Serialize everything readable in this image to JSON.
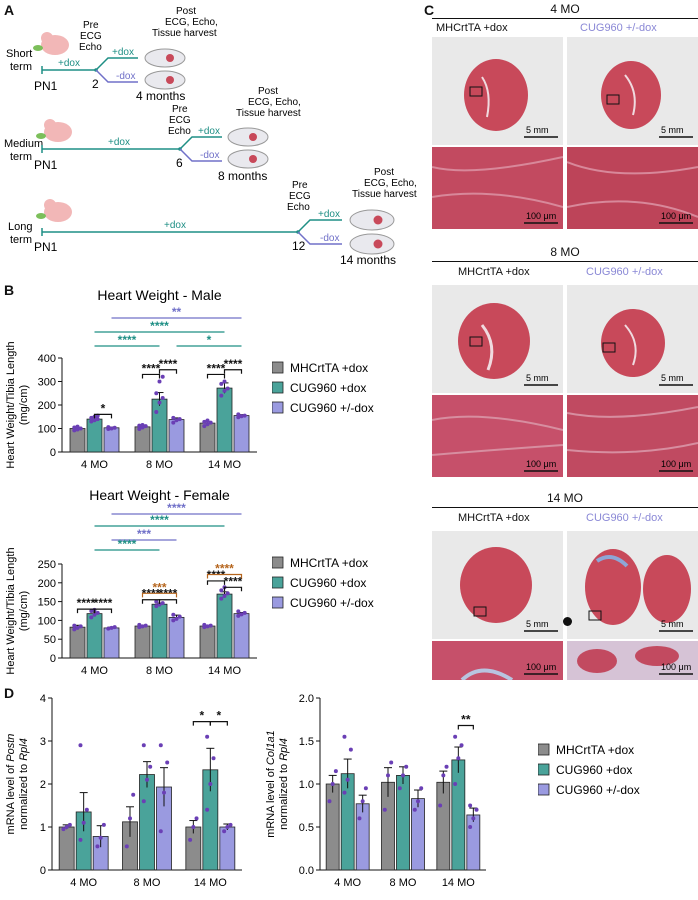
{
  "panels": {
    "a": "A",
    "b": "B",
    "c": "C",
    "d": "D"
  },
  "colors": {
    "gray": "#8c8c8c",
    "teal": "#4aa39a",
    "lavender": "#9a9ae0",
    "teal_line": "#1f8f85",
    "purple_line": "#7070c8",
    "orange_sig": "#b5651d",
    "dot_purple": "#6a3fb5",
    "tissue": "#c8495a"
  },
  "panel_a": {
    "rows": [
      {
        "label_line1": "Short",
        "label_line2": "term",
        "start": "PN1",
        "mid": "2",
        "pre": [
          "Pre",
          "ECG",
          "Echo"
        ],
        "post": [
          "Post",
          "ECG, Echo,",
          "Tissue harvest"
        ],
        "dox_before": "+dox",
        "branch_up": "+dox",
        "branch_down": "-dox",
        "end": "4 months"
      },
      {
        "label_line1": "Medium",
        "label_line2": "term",
        "start": "PN1",
        "mid": "6",
        "pre": [
          "Pre",
          "ECG",
          "Echo"
        ],
        "post": [
          "Post",
          "ECG, Echo,",
          "Tissue harvest"
        ],
        "dox_before": "+dox",
        "branch_up": "+dox",
        "branch_down": "-dox",
        "end": "8 months"
      },
      {
        "label_line1": "Long",
        "label_line2": "term",
        "start": "PN1",
        "mid": "12",
        "pre": [
          "Pre",
          "ECG",
          "Echo"
        ],
        "post": [
          "Post",
          "ECG, Echo,",
          "Tissue harvest"
        ],
        "dox_before": "+dox",
        "branch_up": "+dox",
        "branch_down": "-dox",
        "end": "14 months"
      }
    ]
  },
  "legend": [
    "MHCrtTA +dox",
    "CUG960 +dox",
    "CUG960 +/-dox"
  ],
  "chart_data": [
    {
      "type": "bar",
      "title": "Heart Weight - Male",
      "ylabel": "Heart Weight/Tibia Length\n(mg/cm)",
      "categories": [
        "4 MO",
        "8 MO",
        "14 MO"
      ],
      "ylim": [
        0,
        400
      ],
      "yticks": [
        0,
        100,
        200,
        300,
        400
      ],
      "series": [
        {
          "name": "MHCrtTA +dox",
          "values": [
            100,
            107,
            123
          ]
        },
        {
          "name": "CUG960 +dox",
          "values": [
            140,
            225,
            272
          ]
        },
        {
          "name": "CUG960 +/-dox",
          "values": [
            103,
            138,
            155
          ]
        }
      ],
      "errors": [
        [
          5,
          7,
          6
        ],
        [
          9,
          28,
          22
        ],
        [
          3,
          7,
          4
        ]
      ],
      "points": [
        [
          [
            92,
            96,
            100,
            104,
            108
          ],
          [
            98,
            104,
            110,
            112,
            115
          ],
          [
            110,
            118,
            125,
            128,
            134
          ]
        ],
        [
          [
            130,
            135,
            140,
            145,
            150,
            155
          ],
          [
            170,
            210,
            230,
            250,
            300,
            320
          ],
          [
            240,
            260,
            270,
            290,
            300
          ]
        ],
        [
          [
            98,
            100,
            103,
            106
          ],
          [
            125,
            135,
            140,
            145
          ],
          [
            148,
            152,
            155,
            160
          ]
        ]
      ]
    },
    {
      "type": "bar",
      "title": "Heart Weight - Female",
      "ylabel": "Heart Weight/Tibia Length\n(mg/cm)",
      "categories": [
        "4 MO",
        "8 MO",
        "14 MO"
      ],
      "ylim": [
        0,
        250
      ],
      "yticks": [
        0,
        50,
        100,
        150,
        200,
        250
      ],
      "series": [
        {
          "name": "MHCrtTA +dox",
          "values": [
            82,
            85,
            85
          ]
        },
        {
          "name": "CUG960 +dox",
          "values": [
            118,
            143,
            170
          ]
        },
        {
          "name": "CUG960 +/-dox",
          "values": [
            80,
            108,
            118
          ]
        }
      ],
      "errors": [
        [
          5,
          2,
          2
        ],
        [
          4,
          3,
          6
        ],
        [
          2,
          6,
          3
        ]
      ],
      "points": [
        [
          [
            76,
            80,
            84,
            86
          ],
          [
            82,
            84,
            86,
            88
          ],
          [
            82,
            84,
            86,
            88
          ]
        ],
        [
          [
            108,
            115,
            120,
            125,
            128
          ],
          [
            138,
            142,
            146,
            150
          ],
          [
            158,
            165,
            172,
            180,
            188
          ]
        ],
        [
          [
            78,
            80,
            82
          ],
          [
            100,
            104,
            110,
            115
          ],
          [
            112,
            116,
            120,
            124
          ]
        ]
      ]
    },
    {
      "type": "bar",
      "title": "",
      "ylabel_parts": [
        "mRNA level of ",
        "Postn",
        "normalized to ",
        "Rpl4"
      ],
      "categories": [
        "4 MO",
        "8 MO",
        "14 MO"
      ],
      "ylim": [
        0,
        4
      ],
      "yticks": [
        0,
        1,
        2,
        3,
        4
      ],
      "series": [
        {
          "name": "MHCrtTA +dox",
          "values": [
            1.0,
            1.12,
            1.0
          ]
        },
        {
          "name": "CUG960 +dox",
          "values": [
            1.35,
            2.22,
            2.33
          ]
        },
        {
          "name": "CUG960 +/-dox",
          "values": [
            0.78,
            1.93,
            1.0
          ]
        }
      ],
      "errors": [
        [
          0.05,
          0.35,
          0.15
        ],
        [
          0.45,
          0.3,
          0.5
        ],
        [
          0.25,
          0.45,
          0.07
        ]
      ],
      "points": [
        [
          [
            0.95,
            1.0,
            1.05
          ],
          [
            0.55,
            1.2,
            1.75
          ],
          [
            0.7,
            1.0,
            1.2
          ]
        ],
        [
          [
            0.7,
            1.1,
            1.4,
            2.9
          ],
          [
            1.6,
            2.1,
            2.4,
            2.9
          ],
          [
            1.4,
            2.0,
            2.6,
            3.1
          ]
        ],
        [
          [
            0.55,
            0.75,
            1.05
          ],
          [
            0.9,
            1.8,
            2.5,
            2.9
          ],
          [
            0.9,
            1.0,
            1.05
          ]
        ]
      ]
    },
    {
      "type": "bar",
      "title": "",
      "ylabel_parts": [
        "mRNA level of ",
        "Col1a1",
        "normalized to ",
        "Rpl4"
      ],
      "categories": [
        "4 MO",
        "8 MO",
        "14 MO"
      ],
      "ylim": [
        0,
        2.0
      ],
      "yticks": [
        0.0,
        0.5,
        1.0,
        1.5,
        2.0
      ],
      "series": [
        {
          "name": "MHCrtTA +dox",
          "values": [
            1.0,
            1.02,
            1.02
          ]
        },
        {
          "name": "CUG960 +dox",
          "values": [
            1.12,
            1.1,
            1.28
          ]
        },
        {
          "name": "CUG960 +/-dox",
          "values": [
            0.77,
            0.83,
            0.64
          ]
        }
      ],
      "errors": [
        [
          0.1,
          0.17,
          0.13
        ],
        [
          0.17,
          0.1,
          0.15
        ],
        [
          0.1,
          0.1,
          0.08
        ]
      ],
      "points": [
        [
          [
            0.8,
            1.0,
            1.15
          ],
          [
            0.7,
            1.1,
            1.25
          ],
          [
            0.75,
            1.1,
            1.2
          ]
        ],
        [
          [
            0.9,
            1.05,
            1.4,
            1.55
          ],
          [
            0.95,
            1.1,
            1.2
          ],
          [
            1.0,
            1.3,
            1.45,
            1.55
          ]
        ],
        [
          [
            0.6,
            0.8,
            0.95
          ],
          [
            0.7,
            0.8,
            0.95
          ],
          [
            0.5,
            0.6,
            0.7,
            0.75
          ]
        ]
      ]
    }
  ],
  "sig_male": [
    "*",
    "****",
    "****",
    "****",
    "****",
    "****",
    "*",
    "****",
    "**"
  ],
  "sig_female": [
    "****",
    "****",
    "****",
    "****",
    "****",
    "****",
    "***",
    "****",
    "***",
    "****",
    "****",
    "****"
  ],
  "sig_postn": [
    "*",
    "*"
  ],
  "sig_col": [
    "**"
  ],
  "panel_c": {
    "rows": [
      {
        "title": "4 MO",
        "left": "MHCrtTA +dox",
        "right": "CUG960 +/-dox",
        "scale_big": "5 mm",
        "scale_small": "100 μm"
      },
      {
        "title": "8 MO",
        "left": "MHCrtTA +dox",
        "right": "CUG960 +/-dox",
        "scale_big": "5 mm",
        "scale_small": "100 μm"
      },
      {
        "title": "14 MO",
        "left": "MHCrtTA +dox",
        "right": "CUG960 +/-dox",
        "scale_big": "5 mm",
        "scale_small": "100 μm"
      }
    ]
  }
}
